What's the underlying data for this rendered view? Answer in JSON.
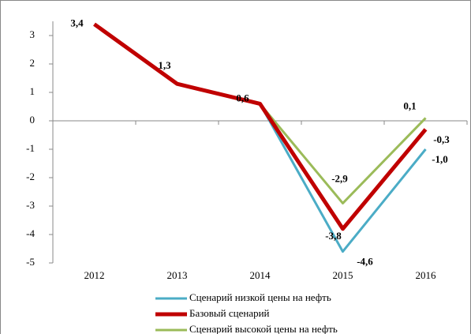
{
  "chart_data": {
    "type": "line",
    "categories": [
      "2012",
      "2013",
      "2014",
      "2015",
      "2016"
    ],
    "series": [
      {
        "name": "Сценарий низкой цены на нефть",
        "color": "#4bacc6",
        "values": [
          null,
          null,
          0.6,
          -4.6,
          -1.0
        ],
        "value_labels": [
          null,
          null,
          null,
          "-4,6",
          "-1,0"
        ]
      },
      {
        "name": "Базовый сценарий",
        "color": "#c00000",
        "values": [
          3.4,
          1.3,
          0.6,
          -3.8,
          -0.3
        ],
        "value_labels": [
          "3,4",
          "1,3",
          "0,6",
          "-3,8",
          "-0,3"
        ]
      },
      {
        "name": "Сценарий высокой цены на нефть",
        "color": "#9bbb59",
        "values": [
          null,
          null,
          0.6,
          -2.9,
          0.1
        ],
        "value_labels": [
          null,
          null,
          null,
          "-2,9",
          "0,1"
        ]
      }
    ],
    "ylim": [
      -5,
      3.5
    ],
    "yticks": [
      -5,
      -4,
      -3,
      -2,
      -1,
      0,
      1,
      2,
      3
    ],
    "grid": false,
    "legend": "bottom"
  }
}
